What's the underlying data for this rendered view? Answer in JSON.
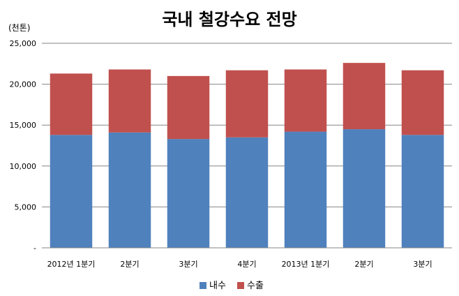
{
  "chart_data": {
    "type": "bar",
    "stacked": true,
    "title": "국내 철강수요 전망",
    "unit_label": "(천톤)",
    "categories": [
      "2012년 1분기",
      "2분기",
      "3분기",
      "4분기",
      "2013년 1분기",
      "2분기",
      "3분기"
    ],
    "series": [
      {
        "name": "내수",
        "color": "#4f81bd",
        "values": [
          13800,
          14100,
          13300,
          13500,
          14200,
          14500,
          13800
        ]
      },
      {
        "name": "수출",
        "color": "#c0504d",
        "values": [
          7500,
          7700,
          7700,
          8200,
          7600,
          8100,
          7900
        ]
      }
    ],
    "ylim": [
      0,
      25000
    ],
    "yticks": [
      0,
      5000,
      10000,
      15000,
      20000,
      25000
    ],
    "ytick_labels": [
      "-",
      "5,000",
      "10,000",
      "15,000",
      "20,000",
      "25,000"
    ],
    "grid": true,
    "legend_position": "bottom"
  }
}
